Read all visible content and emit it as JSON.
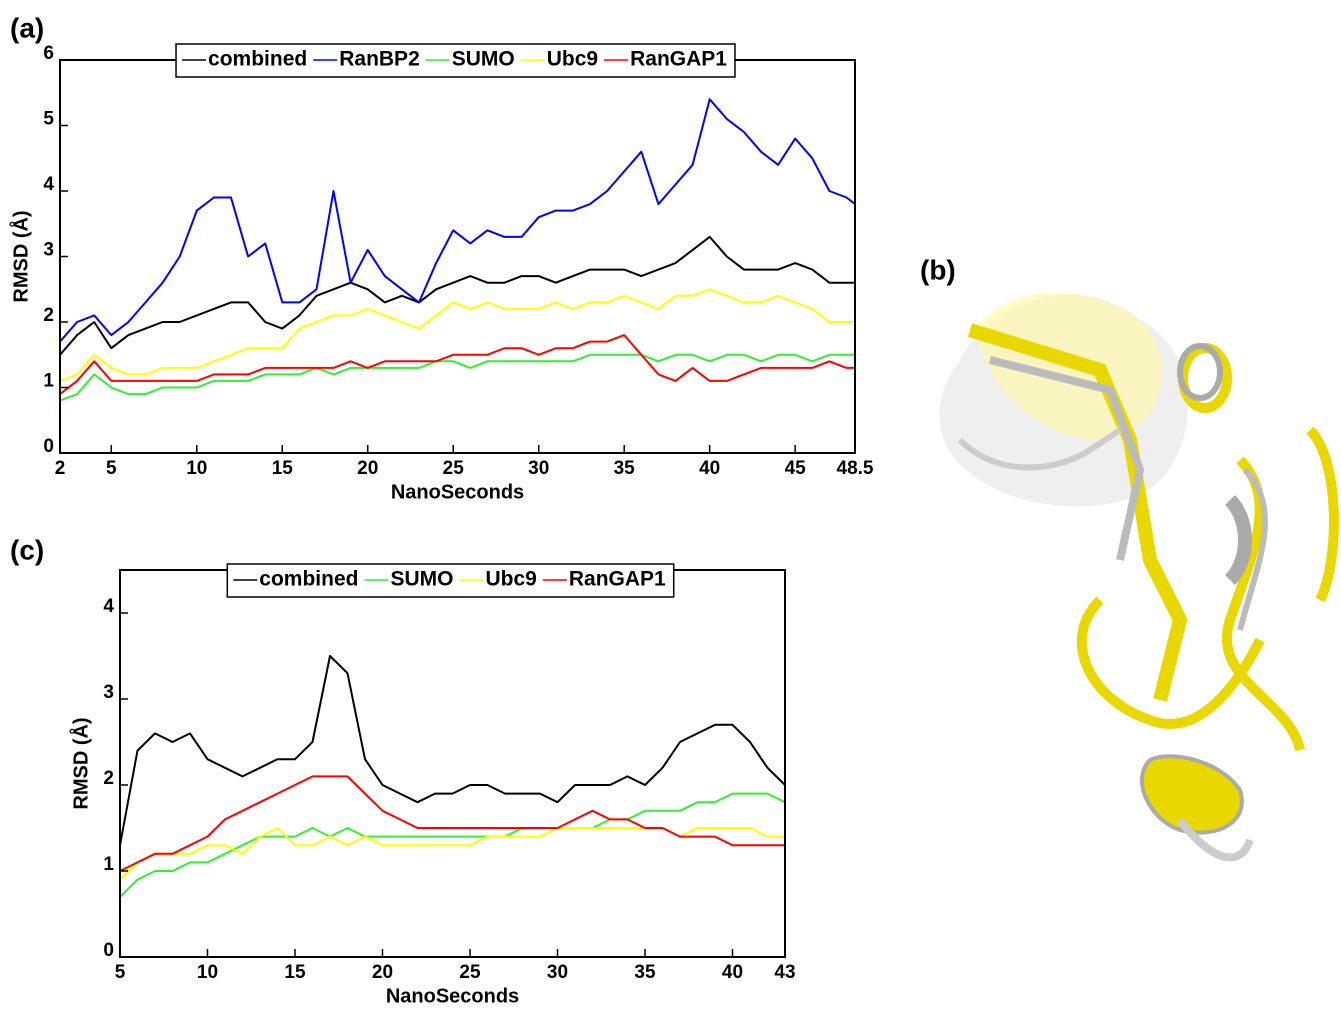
{
  "chart_data": [
    {
      "type": "line",
      "panel": "(a)",
      "xlabel": "NanoSeconds",
      "ylabel": "RMSD (Å)",
      "x": [
        2,
        3,
        4,
        5,
        6,
        7,
        8,
        9,
        10,
        11,
        12,
        13,
        14,
        15,
        16,
        17,
        18,
        19,
        20,
        21,
        22,
        23,
        24,
        25,
        26,
        27,
        28,
        29,
        30,
        31,
        32,
        33,
        34,
        35,
        36,
        37,
        38,
        39,
        40,
        41,
        42,
        43,
        44,
        45,
        46,
        47,
        48,
        48.5
      ],
      "series": [
        {
          "name": "combined",
          "color": "#000000",
          "values": [
            1.5,
            1.8,
            2.0,
            1.6,
            1.8,
            1.9,
            2.0,
            2.0,
            2.1,
            2.2,
            2.3,
            2.3,
            2.0,
            1.9,
            2.1,
            2.4,
            2.5,
            2.6,
            2.5,
            2.3,
            2.4,
            2.3,
            2.5,
            2.6,
            2.7,
            2.6,
            2.6,
            2.7,
            2.7,
            2.6,
            2.7,
            2.8,
            2.8,
            2.8,
            2.7,
            2.8,
            2.9,
            3.1,
            3.3,
            3.0,
            2.8,
            2.8,
            2.8,
            2.9,
            2.8,
            2.6,
            2.6,
            2.6
          ]
        },
        {
          "name": "RanBP2",
          "color": "#0000ff",
          "values": [
            1.7,
            2.0,
            2.1,
            1.8,
            2.0,
            2.3,
            2.6,
            3.0,
            3.7,
            3.9,
            3.9,
            3.0,
            3.2,
            2.3,
            2.3,
            2.5,
            4.0,
            2.6,
            3.1,
            2.7,
            2.5,
            2.3,
            2.9,
            3.4,
            3.2,
            3.4,
            3.3,
            3.3,
            3.6,
            3.7,
            3.7,
            3.8,
            4.0,
            4.3,
            4.6,
            3.8,
            4.1,
            4.4,
            5.4,
            5.1,
            4.9,
            4.6,
            4.4,
            4.8,
            4.5,
            4.0,
            3.9,
            3.8
          ]
        },
        {
          "name": "SUMO",
          "color": "#33ee33",
          "values": [
            0.8,
            0.9,
            1.2,
            1.0,
            0.9,
            0.9,
            1.0,
            1.0,
            1.0,
            1.1,
            1.1,
            1.1,
            1.2,
            1.2,
            1.2,
            1.3,
            1.2,
            1.3,
            1.3,
            1.3,
            1.3,
            1.3,
            1.4,
            1.4,
            1.3,
            1.4,
            1.4,
            1.4,
            1.4,
            1.4,
            1.4,
            1.5,
            1.5,
            1.5,
            1.5,
            1.4,
            1.5,
            1.5,
            1.4,
            1.5,
            1.5,
            1.4,
            1.5,
            1.5,
            1.4,
            1.5,
            1.5,
            1.5
          ]
        },
        {
          "name": "Ubc9",
          "color": "#ffff00",
          "values": [
            1.1,
            1.2,
            1.5,
            1.3,
            1.2,
            1.2,
            1.3,
            1.3,
            1.3,
            1.4,
            1.5,
            1.6,
            1.6,
            1.6,
            1.9,
            2.0,
            2.1,
            2.1,
            2.2,
            2.1,
            2.0,
            1.9,
            2.1,
            2.3,
            2.2,
            2.3,
            2.2,
            2.2,
            2.2,
            2.3,
            2.2,
            2.3,
            2.3,
            2.4,
            2.3,
            2.2,
            2.4,
            2.4,
            2.5,
            2.4,
            2.3,
            2.3,
            2.4,
            2.3,
            2.2,
            2.0,
            2.0,
            2.0
          ]
        },
        {
          "name": "RanGAP1",
          "color": "#ff0000",
          "values": [
            0.9,
            1.1,
            1.4,
            1.1,
            1.1,
            1.1,
            1.1,
            1.1,
            1.1,
            1.2,
            1.2,
            1.2,
            1.3,
            1.3,
            1.3,
            1.3,
            1.3,
            1.4,
            1.3,
            1.4,
            1.4,
            1.4,
            1.4,
            1.5,
            1.5,
            1.5,
            1.6,
            1.6,
            1.5,
            1.6,
            1.6,
            1.7,
            1.7,
            1.8,
            1.5,
            1.2,
            1.1,
            1.3,
            1.1,
            1.1,
            1.2,
            1.3,
            1.3,
            1.3,
            1.3,
            1.4,
            1.3,
            1.3
          ]
        }
      ],
      "xlim": [
        2,
        48.5
      ],
      "xticks": [
        2,
        5,
        10,
        15,
        20,
        25,
        30,
        35,
        40,
        45,
        48.5
      ],
      "ylim": [
        0,
        6
      ],
      "yticks": [
        0,
        1,
        2,
        3,
        4,
        5,
        6
      ],
      "legend": "top"
    },
    {
      "type": "line",
      "panel": "(c)",
      "xlabel": "NanoSeconds",
      "ylabel": "RMSD (Å)",
      "x": [
        5,
        6,
        7,
        8,
        9,
        10,
        11,
        12,
        13,
        14,
        15,
        16,
        17,
        18,
        19,
        20,
        21,
        22,
        23,
        24,
        25,
        26,
        27,
        28,
        29,
        30,
        31,
        32,
        33,
        34,
        35,
        36,
        37,
        38,
        39,
        40,
        41,
        42,
        43
      ],
      "series": [
        {
          "name": "combined",
          "color": "#000000",
          "values": [
            1.3,
            2.4,
            2.6,
            2.5,
            2.6,
            2.3,
            2.2,
            2.1,
            2.2,
            2.3,
            2.3,
            2.5,
            3.5,
            3.3,
            2.3,
            2.0,
            1.9,
            1.8,
            1.9,
            1.9,
            2.0,
            2.0,
            1.9,
            1.9,
            1.9,
            1.8,
            2.0,
            2.0,
            2.0,
            2.1,
            2.0,
            2.2,
            2.5,
            2.6,
            2.7,
            2.7,
            2.5,
            2.2,
            2.0
          ]
        },
        {
          "name": "SUMO",
          "color": "#33ee33",
          "values": [
            0.7,
            0.9,
            1.0,
            1.0,
            1.1,
            1.1,
            1.2,
            1.3,
            1.4,
            1.4,
            1.4,
            1.5,
            1.4,
            1.5,
            1.4,
            1.4,
            1.4,
            1.4,
            1.4,
            1.4,
            1.4,
            1.4,
            1.4,
            1.5,
            1.5,
            1.5,
            1.5,
            1.5,
            1.6,
            1.6,
            1.7,
            1.7,
            1.7,
            1.8,
            1.8,
            1.9,
            1.9,
            1.9,
            1.8
          ]
        },
        {
          "name": "Ubc9",
          "color": "#ffff00",
          "values": [
            0.9,
            1.1,
            1.2,
            1.2,
            1.2,
            1.3,
            1.3,
            1.2,
            1.4,
            1.5,
            1.3,
            1.3,
            1.4,
            1.3,
            1.4,
            1.3,
            1.3,
            1.3,
            1.3,
            1.3,
            1.3,
            1.4,
            1.4,
            1.4,
            1.4,
            1.5,
            1.5,
            1.5,
            1.5,
            1.5,
            1.5,
            1.5,
            1.4,
            1.5,
            1.5,
            1.5,
            1.5,
            1.4,
            1.4
          ]
        },
        {
          "name": "RanGAP1",
          "color": "#ff0000",
          "values": [
            1.0,
            1.1,
            1.2,
            1.2,
            1.3,
            1.4,
            1.6,
            1.7,
            1.8,
            1.9,
            2.0,
            2.1,
            2.1,
            2.1,
            1.9,
            1.7,
            1.6,
            1.5,
            1.5,
            1.5,
            1.5,
            1.5,
            1.5,
            1.5,
            1.5,
            1.5,
            1.6,
            1.7,
            1.6,
            1.6,
            1.5,
            1.5,
            1.4,
            1.4,
            1.4,
            1.3,
            1.3,
            1.3,
            1.3
          ]
        }
      ],
      "xlim": [
        5,
        43
      ],
      "xticks": [
        5,
        10,
        15,
        20,
        25,
        30,
        35,
        40,
        43
      ],
      "ylim": [
        0,
        4.5
      ],
      "yticks": [
        0,
        1,
        2,
        3,
        4
      ],
      "legend": "top"
    }
  ],
  "image_panel": {
    "label": "(b)"
  }
}
